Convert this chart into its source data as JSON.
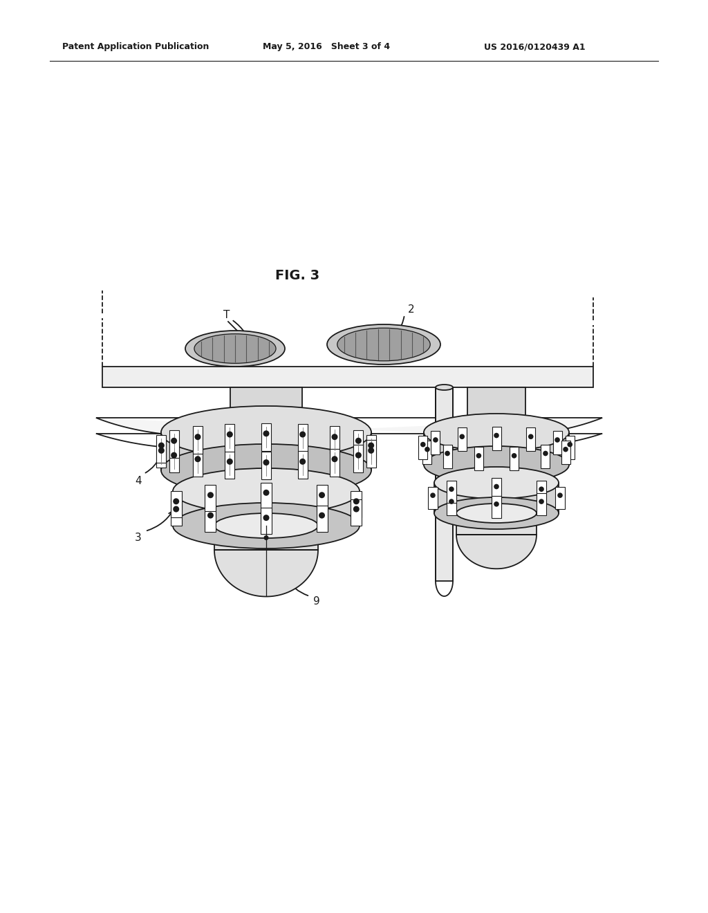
{
  "header_left": "Patent Application Publication",
  "header_mid": "May 5, 2016   Sheet 3 of 4",
  "header_right": "US 2016/0120439 A1",
  "fig_label": "FIG. 3",
  "bg_color": "#ffffff",
  "line_color": "#1a1a1a",
  "lw": 1.3,
  "label_T": "T",
  "label_2": "2",
  "label_4": "4",
  "label_3": "3",
  "label_9": "9"
}
